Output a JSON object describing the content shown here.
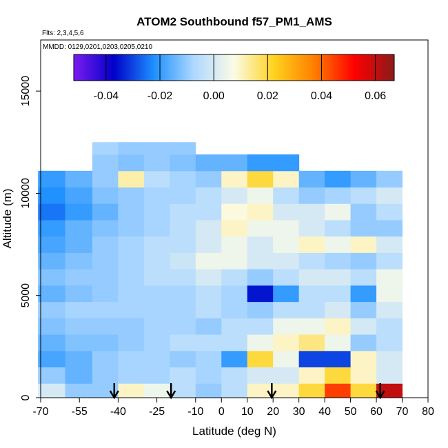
{
  "chart_data": {
    "type": "heatmap",
    "title": "ATOM2 Southbound f57_PM1_AMS",
    "annotations": [
      "Flts: 2,3,4,5,6",
      "MMDD: 0129,0201,0203,0205,0210"
    ],
    "xlabel": "Latitude (deg N)",
    "ylabel": "Altitude (m)",
    "xlim": [
      -70,
      80
    ],
    "ylim": [
      0,
      17500
    ],
    "x_tick_labels": [
      "-70",
      "-55",
      "-40",
      "-25",
      "-10",
      "0",
      "10",
      "20",
      "30",
      "40",
      "50",
      "60",
      "70",
      "80"
    ],
    "y_tick_labels": [
      "0",
      "5000",
      "10000",
      "15000"
    ],
    "colorbar": {
      "range": [
        -0.052,
        0.067
      ],
      "tick_labels": [
        "-0.04",
        "-0.02",
        "0.00",
        "0.02",
        "0.04",
        "0.06"
      ],
      "colors": [
        "#7a1cf0",
        "#0000c8",
        "#1e90ff",
        "#aed8ff",
        "#fbfbe6",
        "#ffd21e",
        "#ff7f00",
        "#ff0000",
        "#8b1a1a"
      ]
    },
    "arrow_latitudes": [
      -41.5,
      -19.5,
      19.5,
      61.5
    ],
    "alt_layers_m": [
      0,
      700,
      1500,
      2300,
      3100,
      3900,
      4700,
      5500,
      6300,
      7100,
      7900,
      8700,
      9500,
      10300,
      11100,
      11900
    ],
    "lat_bins_deg": [
      -66,
      -55,
      -45,
      -35,
      -25,
      -15,
      -5,
      5,
      15,
      25,
      35,
      45,
      55,
      65
    ],
    "values": [
      [
        0.0,
        -0.01,
        -0.01,
        0.01,
        0.005,
        -0.005,
        -0.01,
        -0.005,
        0.01,
        0.01,
        0.02,
        0.045,
        0.02,
        0.06
      ],
      [
        -0.01,
        -0.015,
        -0.01,
        -0.008,
        -0.008,
        -0.005,
        -0.008,
        -0.005,
        0.0,
        0.0,
        0.01,
        0.02,
        0.01,
        0.0
      ],
      [
        -0.018,
        -0.015,
        -0.01,
        -0.008,
        -0.008,
        -0.01,
        -0.008,
        -0.02,
        0.02,
        0.005,
        -0.03,
        -0.03,
        0.01,
        0.0
      ],
      [
        -0.015,
        -0.012,
        -0.012,
        -0.01,
        -0.008,
        -0.005,
        -0.005,
        -0.005,
        0.005,
        0.01,
        0.015,
        0.005,
        -0.01,
        -0.005
      ],
      [
        -0.012,
        -0.01,
        -0.01,
        -0.01,
        -0.008,
        -0.008,
        -0.01,
        -0.005,
        -0.005,
        0.005,
        0.005,
        0.01,
        0.0,
        -0.005
      ],
      [
        -0.01,
        -0.008,
        -0.008,
        -0.008,
        -0.008,
        -0.008,
        -0.005,
        -0.008,
        -0.01,
        -0.005,
        -0.005,
        0.0,
        -0.01,
        0.0
      ],
      [
        -0.015,
        -0.012,
        -0.01,
        -0.008,
        -0.008,
        -0.008,
        -0.005,
        -0.008,
        -0.035,
        -0.02,
        -0.005,
        -0.005,
        -0.02,
        0.005
      ],
      [
        -0.012,
        -0.01,
        -0.01,
        -0.008,
        -0.005,
        -0.005,
        0.0,
        -0.005,
        -0.01,
        -0.005,
        0.0,
        0.0,
        -0.005,
        0.005
      ],
      [
        -0.015,
        -0.012,
        -0.01,
        -0.008,
        -0.005,
        -0.002,
        0.005,
        0.005,
        0.0,
        0.0,
        -0.005,
        -0.008,
        -0.01,
        -0.005
      ],
      [
        -0.018,
        -0.015,
        -0.01,
        -0.008,
        -0.005,
        -0.005,
        0.0,
        0.005,
        0.0,
        0.005,
        0.01,
        0.005,
        0.01,
        0.0
      ],
      [
        -0.02,
        -0.015,
        -0.012,
        -0.01,
        -0.008,
        -0.005,
        0.0,
        0.01,
        0.005,
        0.005,
        0.0,
        -0.005,
        -0.01,
        -0.01
      ],
      [
        -0.025,
        -0.02,
        -0.015,
        -0.01,
        -0.008,
        -0.005,
        -0.005,
        0.008,
        0.01,
        0.0,
        0.0,
        0.005,
        -0.01,
        -0.005
      ],
      [
        -0.022,
        -0.018,
        -0.012,
        -0.01,
        -0.008,
        -0.008,
        -0.005,
        0.0,
        0.005,
        -0.005,
        -0.01,
        -0.008,
        -0.005,
        0.0
      ],
      [
        -0.02,
        -0.015,
        -0.01,
        0.012,
        -0.005,
        -0.008,
        -0.01,
        0.01,
        0.02,
        0.01,
        -0.015,
        -0.02,
        -0.015,
        -0.01
      ],
      [
        null,
        null,
        -0.01,
        -0.012,
        -0.01,
        -0.012,
        -0.015,
        -0.015,
        -0.02,
        -0.02,
        null,
        null,
        null,
        null
      ],
      [
        null,
        null,
        -0.008,
        -0.01,
        -0.01,
        -0.01,
        null,
        null,
        null,
        null,
        null,
        null,
        null,
        null
      ]
    ]
  }
}
